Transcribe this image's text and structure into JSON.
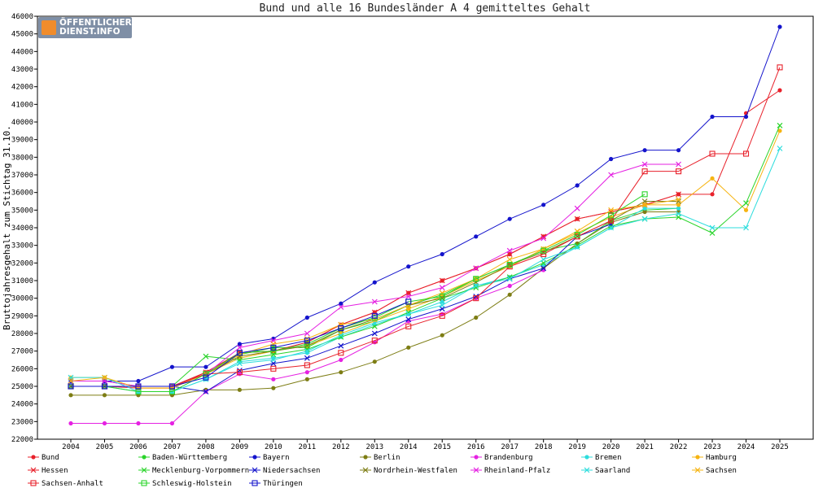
{
  "logo": {
    "line1": "ÖFFENTLICHER",
    "line2": "DIENST.INFO"
  },
  "chart_data": {
    "type": "line",
    "title": "Bund und alle 16 Bundesländer A 4 gemitteltes Gehalt",
    "xlabel": "",
    "ylabel": "Bruttojahresgehalt zum Stichtag 31.10.",
    "x": [
      2004,
      2005,
      2006,
      2007,
      2008,
      2009,
      2010,
      2011,
      2012,
      2013,
      2014,
      2015,
      2016,
      2017,
      2018,
      2019,
      2020,
      2021,
      2022,
      2023,
      2024,
      2025
    ],
    "xlim": [
      2004,
      2025
    ],
    "ylim": [
      22000,
      46000
    ],
    "yticks": [
      22000,
      23000,
      24000,
      25000,
      26000,
      27000,
      28000,
      29000,
      30000,
      31000,
      32000,
      33000,
      34000,
      35000,
      36000,
      37000,
      38000,
      39000,
      40000,
      41000,
      42000,
      43000,
      44000,
      45000,
      46000
    ],
    "grid": false,
    "legend": "bottom",
    "series": [
      {
        "name": "Bund",
        "color": "#e8212b",
        "marker": "dot",
        "values": [
          25000,
          25000,
          24900,
          24900,
          25800,
          26900,
          27000,
          27500,
          28500,
          29200,
          30300,
          31000,
          31700,
          32500,
          33500,
          34500,
          34900,
          35300,
          35900,
          35900,
          40500,
          41800
        ]
      },
      {
        "name": "Baden-Württemberg",
        "color": "#2ad42a",
        "marker": "dot",
        "values": [
          25000,
          25000,
          25000,
          25000,
          25700,
          26800,
          27200,
          27200,
          28200,
          28700,
          29600,
          30200,
          31100,
          31900,
          32700,
          33100,
          34400,
          35000,
          35100,
          null,
          null,
          null
        ]
      },
      {
        "name": "Bayern",
        "color": "#1414cc",
        "marker": "dot",
        "values": [
          25300,
          25300,
          25300,
          26100,
          26100,
          27400,
          27700,
          28900,
          29700,
          30900,
          31800,
          32500,
          33500,
          34500,
          35300,
          36400,
          37900,
          38400,
          38400,
          40300,
          40300,
          45400
        ]
      },
      {
        "name": "Berlin",
        "color": "#7d7d14",
        "marker": "dot",
        "values": [
          24500,
          24500,
          24500,
          24500,
          24800,
          24800,
          24900,
          25400,
          25800,
          26400,
          27200,
          27900,
          28900,
          30200,
          31700,
          33100,
          34300,
          34900,
          34900,
          null,
          null,
          null
        ]
      },
      {
        "name": "Brandenburg",
        "color": "#e521e2",
        "marker": "dot",
        "values": [
          22900,
          22900,
          22900,
          22900,
          24700,
          25700,
          25400,
          25800,
          26500,
          27500,
          28700,
          29100,
          30000,
          30700,
          31600,
          null,
          null,
          null,
          null,
          null,
          null,
          null
        ]
      },
      {
        "name": "Bremen",
        "color": "#2ddddd",
        "marker": "dot",
        "values": [
          25000,
          25000,
          24700,
          24700,
          25400,
          26400,
          26600,
          26900,
          27800,
          28500,
          29100,
          29800,
          30700,
          31200,
          31900,
          32900,
          34000,
          35100,
          35100,
          null,
          null,
          null
        ]
      },
      {
        "name": "Hamburg",
        "color": "#f6b412",
        "marker": "dot",
        "values": [
          25500,
          25500,
          24900,
          24900,
          25700,
          26600,
          27000,
          27300,
          28000,
          28700,
          29400,
          30100,
          31000,
          31800,
          32800,
          33700,
          34600,
          35300,
          35300,
          36800,
          35000,
          39500
        ]
      },
      {
        "name": "Hessen",
        "color": "#e8212b",
        "marker": "x",
        "values": [
          25000,
          25000,
          25000,
          25000,
          25800,
          26900,
          27000,
          27500,
          28500,
          29200,
          30300,
          31000,
          31700,
          32500,
          33500,
          34500,
          34900,
          35300,
          35900,
          null,
          null,
          null
        ]
      },
      {
        "name": "Mecklenburg-Vorpommern",
        "color": "#2ad42a",
        "marker": "x",
        "values": [
          25000,
          25000,
          25000,
          25000,
          26700,
          26500,
          26800,
          27100,
          27800,
          28400,
          29200,
          30000,
          30600,
          31200,
          32000,
          33000,
          34100,
          34500,
          34600,
          33700,
          35400,
          39800
        ]
      },
      {
        "name": "Niedersachsen",
        "color": "#1414cc",
        "marker": "x",
        "values": [
          25300,
          25300,
          25000,
          25000,
          24700,
          25900,
          26300,
          26600,
          27300,
          28000,
          28800,
          29400,
          30100,
          31100,
          31700,
          33500,
          34200,
          null,
          null,
          null,
          null,
          null
        ]
      },
      {
        "name": "Nordrhein-Westfalen",
        "color": "#7d7d14",
        "marker": "x",
        "values": [
          25000,
          25000,
          25000,
          25000,
          25700,
          26700,
          27000,
          27300,
          28200,
          28800,
          29600,
          30000,
          30900,
          31900,
          32600,
          33500,
          34400,
          35500,
          35500,
          null,
          null,
          null
        ]
      },
      {
        "name": "Rheinland-Pfalz",
        "color": "#e521e2",
        "marker": "x",
        "values": [
          25300,
          25300,
          25000,
          25000,
          25700,
          27200,
          27600,
          28000,
          29500,
          29800,
          30100,
          30600,
          31700,
          32700,
          33400,
          35100,
          37000,
          37600,
          37600,
          null,
          null,
          null
        ]
      },
      {
        "name": "Saarland",
        "color": "#2ddddd",
        "marker": "x",
        "values": [
          25500,
          25500,
          24700,
          24700,
          25400,
          26300,
          26500,
          27000,
          27900,
          28600,
          29100,
          29600,
          30700,
          31100,
          32200,
          32900,
          34000,
          34500,
          34800,
          34000,
          34000,
          38500
        ]
      },
      {
        "name": "Sachsen",
        "color": "#f6b412",
        "marker": "x",
        "values": [
          25300,
          25500,
          24900,
          24900,
          25700,
          26800,
          27400,
          27700,
          28500,
          28800,
          29600,
          30300,
          31100,
          32200,
          32800,
          33800,
          35000,
          35300,
          35600,
          null,
          null,
          null
        ]
      },
      {
        "name": "Sachsen-Anhalt",
        "color": "#e8212b",
        "marker": "square",
        "values": [
          25000,
          25000,
          25000,
          25000,
          25700,
          25800,
          26000,
          26200,
          26900,
          27600,
          28400,
          29000,
          30000,
          31800,
          32500,
          33500,
          34400,
          37200,
          37200,
          38200,
          38200,
          43100
        ]
      },
      {
        "name": "Schleswig-Holstein",
        "color": "#2ad42a",
        "marker": "square",
        "values": [
          25000,
          25000,
          24700,
          24700,
          25700,
          26900,
          27000,
          27400,
          28300,
          28900,
          29800,
          30100,
          31100,
          31900,
          32700,
          33600,
          34700,
          35900,
          null,
          null,
          null,
          null
        ]
      },
      {
        "name": "Thüringen",
        "color": "#1414cc",
        "marker": "square",
        "values": [
          25000,
          25000,
          25000,
          25000,
          25500,
          26900,
          27200,
          27600,
          28300,
          29000,
          29800,
          null,
          null,
          null,
          null,
          null,
          null,
          null,
          null,
          null,
          null,
          null
        ]
      }
    ]
  }
}
